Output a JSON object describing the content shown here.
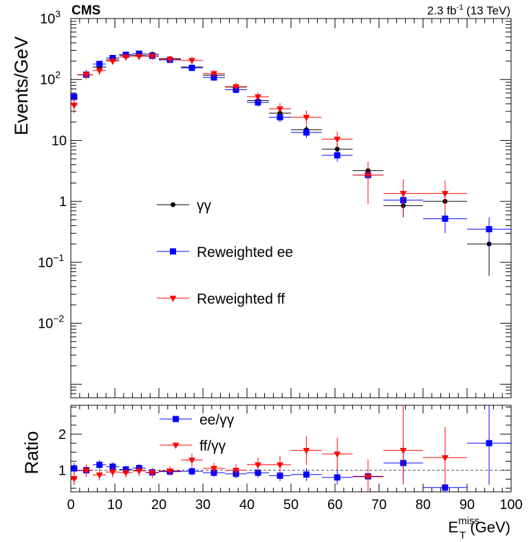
{
  "header": {
    "experiment": "CMS",
    "lumi_prefix": "2.3 fb",
    "lumi_exp": "-1",
    "lumi_suffix": " (13 TeV)"
  },
  "axes": {
    "x_main": "E",
    "x_sup": "miss",
    "x_sub": "T",
    "x_unit": " (GeV)",
    "y_top": "Events/GeV",
    "y_bottom": "Ratio"
  },
  "colors": {
    "gg": "#000000",
    "ee": "#0000ff",
    "ff": "#ff0000",
    "ref_line": "#555555"
  },
  "chart_data": [
    {
      "type": "scatter",
      "panel": "top",
      "x_range": [
        0,
        100
      ],
      "y_range": [
        0.0006,
        1000
      ],
      "y_scale": "log",
      "ylabel": "Events/GeV",
      "xlabel": "E_T^miss (GeV)",
      "legend_position": "center-left",
      "x_ticks": [
        0,
        10,
        20,
        30,
        40,
        50,
        60,
        70,
        80,
        90,
        100
      ],
      "y_ticks": [
        {
          "v": 0.01,
          "base": "10",
          "exp": "−2"
        },
        {
          "v": 0.1,
          "base": "10",
          "exp": "−1"
        },
        {
          "v": 1,
          "base": "1",
          "exp": ""
        },
        {
          "v": 10,
          "base": "10",
          "exp": ""
        },
        {
          "v": 100,
          "base": "10",
          "exp": "2"
        },
        {
          "v": 1000,
          "base": "10",
          "exp": "3"
        }
      ],
      "series": [
        {
          "name": "γγ",
          "key": "gg",
          "marker": "circle",
          "points": [
            {
              "x": 0.75,
              "xlo": 0,
              "xhi": 1.5,
              "y": 50,
              "ylo": 45,
              "yhi": 56
            },
            {
              "x": 3.5,
              "xlo": 1.5,
              "xhi": 5,
              "y": 120,
              "ylo": 110,
              "yhi": 131
            },
            {
              "x": 6.5,
              "xlo": 5,
              "xhi": 8,
              "y": 160,
              "ylo": 145,
              "yhi": 175
            },
            {
              "x": 9.5,
              "xlo": 8,
              "xhi": 11,
              "y": 210,
              "ylo": 195,
              "yhi": 225
            },
            {
              "x": 12.5,
              "xlo": 11,
              "xhi": 14,
              "y": 250,
              "ylo": 232,
              "yhi": 268
            },
            {
              "x": 15.5,
              "xlo": 14,
              "xhi": 17,
              "y": 250,
              "ylo": 232,
              "yhi": 268
            },
            {
              "x": 18.5,
              "xlo": 17,
              "xhi": 20,
              "y": 260,
              "ylo": 242,
              "yhi": 278
            },
            {
              "x": 22.5,
              "xlo": 20,
              "xhi": 25,
              "y": 220,
              "ylo": 205,
              "yhi": 235
            },
            {
              "x": 27.5,
              "xlo": 25,
              "xhi": 30,
              "y": 160,
              "ylo": 148,
              "yhi": 172
            },
            {
              "x": 32.5,
              "xlo": 30,
              "xhi": 35,
              "y": 118,
              "ylo": 108,
              "yhi": 128
            },
            {
              "x": 37.5,
              "xlo": 35,
              "xhi": 40,
              "y": 75,
              "ylo": 68,
              "yhi": 82
            },
            {
              "x": 42.5,
              "xlo": 40,
              "xhi": 45,
              "y": 45,
              "ylo": 40,
              "yhi": 50
            },
            {
              "x": 47.5,
              "xlo": 45,
              "xhi": 50,
              "y": 28,
              "ylo": 24,
              "yhi": 32
            },
            {
              "x": 53.5,
              "xlo": 50,
              "xhi": 57,
              "y": 15,
              "ylo": 12.5,
              "yhi": 17.5
            },
            {
              "x": 60.5,
              "xlo": 57,
              "xhi": 64,
              "y": 7.2,
              "ylo": 5.8,
              "yhi": 8.8
            },
            {
              "x": 67.5,
              "xlo": 64,
              "xhi": 71,
              "y": 3.2,
              "ylo": 2.4,
              "yhi": 4.2
            },
            {
              "x": 75.5,
              "xlo": 71,
              "xhi": 80,
              "y": 0.85,
              "ylo": 0.55,
              "yhi": 1.3
            },
            {
              "x": 85,
              "xlo": 80,
              "xhi": 90,
              "y": 1.0,
              "ylo": 0.55,
              "yhi": 1.5
            },
            {
              "x": 95,
              "xlo": 90,
              "xhi": 100,
              "y": 0.2,
              "ylo": 0.06,
              "yhi": 0.45
            }
          ]
        },
        {
          "name": "Reweighted ee",
          "key": "ee",
          "marker": "square",
          "points": [
            {
              "x": 0.75,
              "xlo": 0,
              "xhi": 1.5,
              "y": 52,
              "ylo": 44,
              "yhi": 60
            },
            {
              "x": 3.5,
              "xlo": 1.5,
              "xhi": 5,
              "y": 120,
              "ylo": 106,
              "yhi": 136
            },
            {
              "x": 6.5,
              "xlo": 5,
              "xhi": 8,
              "y": 180,
              "ylo": 160,
              "yhi": 200
            },
            {
              "x": 9.5,
              "xlo": 8,
              "xhi": 11,
              "y": 225,
              "ylo": 200,
              "yhi": 250
            },
            {
              "x": 12.5,
              "xlo": 11,
              "xhi": 14,
              "y": 255,
              "ylo": 228,
              "yhi": 284
            },
            {
              "x": 15.5,
              "xlo": 14,
              "xhi": 17,
              "y": 265,
              "ylo": 238,
              "yhi": 294
            },
            {
              "x": 18.5,
              "xlo": 17,
              "xhi": 20,
              "y": 245,
              "ylo": 220,
              "yhi": 272
            },
            {
              "x": 22.5,
              "xlo": 20,
              "xhi": 25,
              "y": 210,
              "ylo": 190,
              "yhi": 232
            },
            {
              "x": 27.5,
              "xlo": 25,
              "xhi": 30,
              "y": 155,
              "ylo": 138,
              "yhi": 172
            },
            {
              "x": 32.5,
              "xlo": 30,
              "xhi": 35,
              "y": 108,
              "ylo": 95,
              "yhi": 121
            },
            {
              "x": 37.5,
              "xlo": 35,
              "xhi": 40,
              "y": 68,
              "ylo": 59,
              "yhi": 77
            },
            {
              "x": 42.5,
              "xlo": 40,
              "xhi": 45,
              "y": 42,
              "ylo": 36,
              "yhi": 48
            },
            {
              "x": 47.5,
              "xlo": 45,
              "xhi": 50,
              "y": 24,
              "ylo": 20,
              "yhi": 28
            },
            {
              "x": 53.5,
              "xlo": 50,
              "xhi": 57,
              "y": 13.5,
              "ylo": 11,
              "yhi": 16
            },
            {
              "x": 60.5,
              "xlo": 57,
              "xhi": 64,
              "y": 5.7,
              "ylo": 4.5,
              "yhi": 7.0
            },
            {
              "x": 67.5,
              "xlo": 64,
              "xhi": 71,
              "y": 2.7,
              "ylo": 2.0,
              "yhi": 3.5
            },
            {
              "x": 75.5,
              "xlo": 71,
              "xhi": 80,
              "y": 1.05,
              "ylo": 0.7,
              "yhi": 1.5
            },
            {
              "x": 85,
              "xlo": 80,
              "xhi": 90,
              "y": 0.52,
              "ylo": 0.3,
              "yhi": 0.8
            },
            {
              "x": 95,
              "xlo": 90,
              "xhi": 100,
              "y": 0.35,
              "ylo": 0.18,
              "yhi": 0.55
            }
          ]
        },
        {
          "name": "Reweighted ff",
          "key": "ff",
          "marker": "triangle-down",
          "points": [
            {
              "x": 0.75,
              "xlo": 0,
              "xhi": 1.5,
              "y": 38,
              "ylo": 28,
              "yhi": 50
            },
            {
              "x": 3.5,
              "xlo": 1.5,
              "xhi": 5,
              "y": 120,
              "ylo": 100,
              "yhi": 145
            },
            {
              "x": 6.5,
              "xlo": 5,
              "xhi": 8,
              "y": 140,
              "ylo": 118,
              "yhi": 165
            },
            {
              "x": 9.5,
              "xlo": 8,
              "xhi": 11,
              "y": 200,
              "ylo": 175,
              "yhi": 230
            },
            {
              "x": 12.5,
              "xlo": 11,
              "xhi": 14,
              "y": 235,
              "ylo": 205,
              "yhi": 268
            },
            {
              "x": 15.5,
              "xlo": 14,
              "xhi": 17,
              "y": 240,
              "ylo": 210,
              "yhi": 272
            },
            {
              "x": 18.5,
              "xlo": 17,
              "xhi": 20,
              "y": 240,
              "ylo": 210,
              "yhi": 272
            },
            {
              "x": 22.5,
              "xlo": 20,
              "xhi": 25,
              "y": 215,
              "ylo": 190,
              "yhi": 242
            },
            {
              "x": 27.5,
              "xlo": 25,
              "xhi": 30,
              "y": 205,
              "ylo": 178,
              "yhi": 235
            },
            {
              "x": 32.5,
              "xlo": 30,
              "xhi": 35,
              "y": 125,
              "ylo": 108,
              "yhi": 144
            },
            {
              "x": 37.5,
              "xlo": 35,
              "xhi": 40,
              "y": 76,
              "ylo": 65,
              "yhi": 88
            },
            {
              "x": 42.5,
              "xlo": 40,
              "xhi": 45,
              "y": 52,
              "ylo": 43,
              "yhi": 62
            },
            {
              "x": 47.5,
              "xlo": 45,
              "xhi": 50,
              "y": 33,
              "ylo": 26,
              "yhi": 41
            },
            {
              "x": 53.5,
              "xlo": 50,
              "xhi": 57,
              "y": 24,
              "ylo": 18,
              "yhi": 31
            },
            {
              "x": 60.5,
              "xlo": 57,
              "xhi": 64,
              "y": 10.5,
              "ylo": 7.5,
              "yhi": 14
            },
            {
              "x": 67.5,
              "xlo": 64,
              "xhi": 71,
              "y": 2.7,
              "ylo": 0.9,
              "yhi": 4.5
            },
            {
              "x": 75.5,
              "xlo": 71,
              "xhi": 80,
              "y": 1.35,
              "ylo": 0.6,
              "yhi": 2.3
            },
            {
              "x": 85,
              "xlo": 80,
              "xhi": 90,
              "y": 1.35,
              "ylo": 0.65,
              "yhi": 2.2
            }
          ]
        }
      ]
    },
    {
      "type": "scatter",
      "panel": "ratio",
      "x_range": [
        0,
        100
      ],
      "y_range": [
        0.4,
        2.8
      ],
      "y_scale": "linear",
      "ylabel": "Ratio",
      "reference_line": 1,
      "legend_position": "top-left",
      "x_ticks": [
        0,
        10,
        20,
        30,
        40,
        50,
        60,
        70,
        80,
        90,
        100
      ],
      "y_ticks": [
        1,
        2
      ],
      "series": [
        {
          "name": "ee/γγ",
          "key": "ee",
          "marker": "square",
          "points": [
            {
              "x": 0.75,
              "xlo": 0,
              "xhi": 1.5,
              "y": 1.05,
              "ylo": 0.9,
              "yhi": 1.2
            },
            {
              "x": 3.5,
              "xlo": 1.5,
              "xhi": 5,
              "y": 1.0,
              "ylo": 0.88,
              "yhi": 1.12
            },
            {
              "x": 6.5,
              "xlo": 5,
              "xhi": 8,
              "y": 1.15,
              "ylo": 1.02,
              "yhi": 1.28
            },
            {
              "x": 9.5,
              "xlo": 8,
              "xhi": 11,
              "y": 1.1,
              "ylo": 0.98,
              "yhi": 1.22
            },
            {
              "x": 12.5,
              "xlo": 11,
              "xhi": 14,
              "y": 1.02,
              "ylo": 0.91,
              "yhi": 1.13
            },
            {
              "x": 15.5,
              "xlo": 14,
              "xhi": 17,
              "y": 1.06,
              "ylo": 0.95,
              "yhi": 1.17
            },
            {
              "x": 18.5,
              "xlo": 17,
              "xhi": 20,
              "y": 0.94,
              "ylo": 0.84,
              "yhi": 1.04
            },
            {
              "x": 22.5,
              "xlo": 20,
              "xhi": 25,
              "y": 0.96,
              "ylo": 0.86,
              "yhi": 1.06
            },
            {
              "x": 27.5,
              "xlo": 25,
              "xhi": 30,
              "y": 0.97,
              "ylo": 0.86,
              "yhi": 1.08
            },
            {
              "x": 32.5,
              "xlo": 30,
              "xhi": 35,
              "y": 0.93,
              "ylo": 0.82,
              "yhi": 1.04
            },
            {
              "x": 37.5,
              "xlo": 35,
              "xhi": 40,
              "y": 0.9,
              "ylo": 0.78,
              "yhi": 1.02
            },
            {
              "x": 42.5,
              "xlo": 40,
              "xhi": 45,
              "y": 0.93,
              "ylo": 0.79,
              "yhi": 1.07
            },
            {
              "x": 47.5,
              "xlo": 45,
              "xhi": 50,
              "y": 0.85,
              "ylo": 0.7,
              "yhi": 1.0
            },
            {
              "x": 53.5,
              "xlo": 50,
              "xhi": 57,
              "y": 0.88,
              "ylo": 0.7,
              "yhi": 1.06
            },
            {
              "x": 60.5,
              "xlo": 57,
              "xhi": 64,
              "y": 0.8,
              "ylo": 0.6,
              "yhi": 1.0
            },
            {
              "x": 67.5,
              "xlo": 64,
              "xhi": 71,
              "y": 0.83,
              "ylo": 0.55,
              "yhi": 1.11
            },
            {
              "x": 75.5,
              "xlo": 71,
              "xhi": 80,
              "y": 1.2,
              "ylo": 0.7,
              "yhi": 1.7
            },
            {
              "x": 85,
              "xlo": 80,
              "xhi": 90,
              "y": 0.52,
              "ylo": 0.4,
              "yhi": 0.85
            },
            {
              "x": 95,
              "xlo": 90,
              "xhi": 100,
              "y": 1.75,
              "ylo": 0.6,
              "yhi": 2.8
            }
          ]
        },
        {
          "name": "ff/γγ",
          "key": "ff",
          "marker": "triangle-down",
          "points": [
            {
              "x": 0.75,
              "xlo": 0,
              "xhi": 1.5,
              "y": 0.77,
              "ylo": 0.58,
              "yhi": 0.96
            },
            {
              "x": 3.5,
              "xlo": 1.5,
              "xhi": 5,
              "y": 0.99,
              "ylo": 0.82,
              "yhi": 1.16
            },
            {
              "x": 6.5,
              "xlo": 5,
              "xhi": 8,
              "y": 0.87,
              "ylo": 0.72,
              "yhi": 1.02
            },
            {
              "x": 9.5,
              "xlo": 8,
              "xhi": 11,
              "y": 0.95,
              "ylo": 0.8,
              "yhi": 1.1
            },
            {
              "x": 12.5,
              "xlo": 11,
              "xhi": 14,
              "y": 0.93,
              "ylo": 0.79,
              "yhi": 1.07
            },
            {
              "x": 15.5,
              "xlo": 14,
              "xhi": 17,
              "y": 0.98,
              "ylo": 0.83,
              "yhi": 1.13
            },
            {
              "x": 18.5,
              "xlo": 17,
              "xhi": 20,
              "y": 0.93,
              "ylo": 0.79,
              "yhi": 1.07
            },
            {
              "x": 22.5,
              "xlo": 20,
              "xhi": 25,
              "y": 0.98,
              "ylo": 0.85,
              "yhi": 1.11
            },
            {
              "x": 27.5,
              "xlo": 25,
              "xhi": 30,
              "y": 1.28,
              "ylo": 1.1,
              "yhi": 1.46
            },
            {
              "x": 32.5,
              "xlo": 30,
              "xhi": 35,
              "y": 1.05,
              "ylo": 0.9,
              "yhi": 1.2
            },
            {
              "x": 37.5,
              "xlo": 35,
              "xhi": 40,
              "y": 1.0,
              "ylo": 0.84,
              "yhi": 1.16
            },
            {
              "x": 42.5,
              "xlo": 40,
              "xhi": 45,
              "y": 1.15,
              "ylo": 0.95,
              "yhi": 1.35
            },
            {
              "x": 47.5,
              "xlo": 45,
              "xhi": 50,
              "y": 1.15,
              "ylo": 0.9,
              "yhi": 1.4
            },
            {
              "x": 53.5,
              "xlo": 50,
              "xhi": 57,
              "y": 1.55,
              "ylo": 1.15,
              "yhi": 1.95
            },
            {
              "x": 60.5,
              "xlo": 57,
              "xhi": 64,
              "y": 1.45,
              "ylo": 1.0,
              "yhi": 1.9
            },
            {
              "x": 67.5,
              "xlo": 64,
              "xhi": 71,
              "y": 0.82,
              "ylo": 0.4,
              "yhi": 1.3
            },
            {
              "x": 75.5,
              "xlo": 71,
              "xhi": 80,
              "y": 1.55,
              "ylo": 0.6,
              "yhi": 2.8
            },
            {
              "x": 85,
              "xlo": 80,
              "xhi": 90,
              "y": 1.35,
              "ylo": 0.55,
              "yhi": 2.2
            }
          ]
        }
      ]
    }
  ]
}
